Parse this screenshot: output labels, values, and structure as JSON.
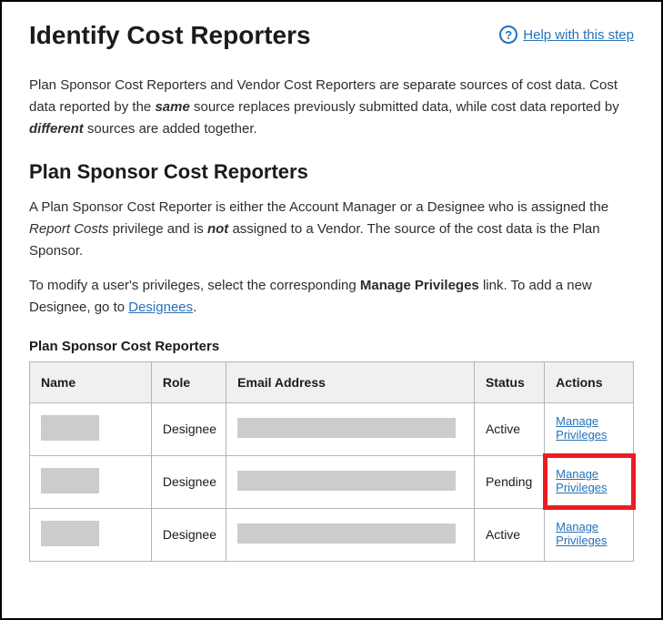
{
  "header": {
    "title": "Identify Cost Reporters",
    "help_label": "Help with this step",
    "help_glyph": "?"
  },
  "intro": {
    "p1_a": "Plan Sponsor Cost Reporters and Vendor Cost Reporters are separate sources of cost data. Cost data reported by the ",
    "p1_same": "same",
    "p1_b": " source replaces previously submitted data, while cost data reported by ",
    "p1_diff": "different",
    "p1_c": " sources are added together."
  },
  "section": {
    "heading": "Plan Sponsor Cost Reporters",
    "p2_a": "A Plan Sponsor Cost Reporter is either the Account Manager or a Designee who is assigned the ",
    "p2_priv": "Report Costs",
    "p2_b": " privilege and is ",
    "p2_not": "not",
    "p2_c": " assigned to a Vendor. The source of the cost data is the Plan Sponsor.",
    "p3_a": "To modify a user's privileges, select the corresponding ",
    "p3_mp": "Manage Privileges",
    "p3_b": " link. To add a new Designee, go to ",
    "p3_link": "Designees",
    "p3_c": "."
  },
  "table": {
    "title": "Plan Sponsor Cost Reporters",
    "columns": {
      "name": "Name",
      "role": "Role",
      "email": "Email Address",
      "status": "Status",
      "actions": "Actions"
    },
    "rows": [
      {
        "role": "Designee",
        "status": "Active",
        "action": "Manage Privileges",
        "highlight": false
      },
      {
        "role": "Designee",
        "status": "Pending",
        "action": "Manage Privileges",
        "highlight": true
      },
      {
        "role": "Designee",
        "status": "Active",
        "action": "Manage Privileges",
        "highlight": false
      }
    ]
  },
  "colors": {
    "link": "#2672b8",
    "text": "#1b1b1b",
    "th_bg": "#f0f0f0",
    "border": "#b5b5b5",
    "redacted": "#cccccc",
    "highlight": "#ec1c24",
    "background": "#ffffff"
  }
}
